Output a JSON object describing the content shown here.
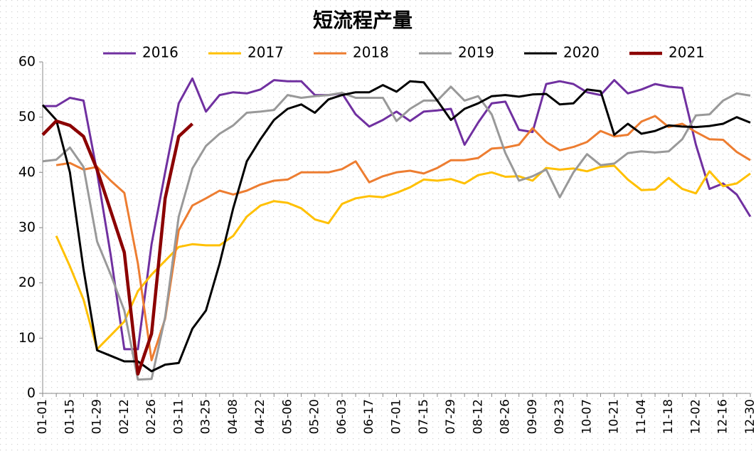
{
  "chart_data": {
    "type": "line",
    "title": "短流程产量",
    "categories": [
      "01-01",
      null,
      "01-15",
      null,
      "01-29",
      null,
      "02-12",
      null,
      "02-26",
      null,
      "03-11",
      null,
      "03-25",
      null,
      "04-08",
      null,
      "04-22",
      null,
      "05-06",
      null,
      "05-20",
      null,
      "06-03",
      null,
      "06-17",
      null,
      "07-01",
      null,
      "07-15",
      null,
      "07-29",
      null,
      "08-12",
      null,
      "08-26",
      null,
      "09-09",
      null,
      "09-23",
      null,
      "10-07",
      null,
      "10-21",
      null,
      "11-04",
      null,
      "11-18",
      null,
      "12-02",
      null,
      "12-16",
      null,
      "12-30"
    ],
    "series": [
      {
        "name": "2016",
        "color": "#7030a0",
        "values": [
          52,
          52,
          53.5,
          53,
          40,
          25,
          8,
          8,
          27,
          40,
          52.5,
          57,
          51,
          54,
          54.5,
          54.3,
          55,
          56.7,
          56.5,
          56.5,
          54,
          54,
          54.3,
          50.5,
          48.3,
          49.5,
          51,
          49.3,
          51,
          51.2,
          51.5,
          45,
          49,
          52.5,
          52.8,
          47.7,
          47.3,
          56,
          56.5,
          56,
          54.5,
          54,
          56.7,
          54.3,
          55,
          56,
          55.5,
          55.3,
          45,
          37,
          38,
          36,
          32
        ]
      },
      {
        "name": "2017",
        "color": "#ffc000",
        "values": [
          null,
          28.5,
          23,
          17,
          8,
          10.5,
          13,
          18.5,
          21.5,
          24,
          26.5,
          27,
          26.8,
          26.8,
          28.5,
          32,
          34,
          34.8,
          34.5,
          33.5,
          31.5,
          30.8,
          34.3,
          35.3,
          35.7,
          35.5,
          36.3,
          37.3,
          38.7,
          38.5,
          38.8,
          38,
          39.5,
          40,
          39.2,
          39.3,
          38.5,
          40.8,
          40.5,
          40.7,
          40.2,
          41,
          41.2,
          38.7,
          36.8,
          36.9,
          39,
          37,
          36.2,
          40.2,
          37.5,
          38,
          39.8
        ]
      },
      {
        "name": "2018",
        "color": "#ed7d31",
        "values": [
          null,
          41.3,
          41.7,
          40.5,
          41,
          38.5,
          36.3,
          23.5,
          6,
          13.5,
          29.5,
          34,
          35.3,
          36.7,
          36,
          36.7,
          37.8,
          38.5,
          38.7,
          40,
          40,
          40,
          40.6,
          42,
          38.2,
          39.3,
          40,
          40.3,
          39.8,
          40.8,
          42.2,
          42.2,
          42.6,
          44.3,
          44.5,
          45,
          48,
          45.5,
          44,
          44.6,
          45.5,
          47.5,
          46.5,
          46.8,
          49.2,
          50.2,
          48.2,
          48.8,
          47.3,
          46,
          45.9,
          43.7,
          42.2
        ]
      },
      {
        "name": "2019",
        "color": "#999999",
        "values": [
          42,
          42.3,
          44.5,
          41,
          27.5,
          21.5,
          15,
          2.5,
          2.6,
          13.8,
          32,
          40.7,
          44.8,
          47,
          48.5,
          50.8,
          51,
          51.3,
          54,
          53.5,
          53.8,
          54,
          54.4,
          53.5,
          53.5,
          53.5,
          49.3,
          51.5,
          53,
          53,
          55.5,
          53,
          53.8,
          50.5,
          43.5,
          38.5,
          39.3,
          40.5,
          35.5,
          40,
          43.3,
          41.3,
          41.6,
          43.5,
          43.8,
          43.6,
          43.8,
          46,
          50.3,
          50.5,
          53,
          54.3,
          53.9
        ]
      },
      {
        "name": "2020",
        "color": "#000000",
        "values": [
          52.2,
          49.5,
          40,
          22.5,
          7.8,
          6.8,
          5.8,
          5.8,
          4,
          5.2,
          5.5,
          11.7,
          15,
          23.5,
          33.5,
          42,
          46,
          49.5,
          51.5,
          52.3,
          50.8,
          53.2,
          54,
          54.5,
          54.5,
          55.8,
          54.6,
          56.5,
          56.3,
          53,
          49.5,
          51.5,
          52.5,
          53.8,
          54,
          53.7,
          54.1,
          54.2,
          52.3,
          52.5,
          55,
          54.7,
          46.8,
          48.8,
          47,
          47.5,
          48.5,
          48.3,
          48.2,
          48.4,
          48.8,
          50,
          49
        ]
      },
      {
        "name": "2021",
        "color": "#8b0000",
        "values": [
          46.8,
          49.3,
          48.5,
          46.5,
          40.5,
          33,
          25.5,
          3.5,
          10.8,
          35.3,
          46.5,
          48.8,
          null,
          null,
          null,
          null,
          null,
          null,
          null,
          null,
          null,
          null,
          null,
          null,
          null,
          null,
          null,
          null,
          null,
          null,
          null,
          null,
          null,
          null,
          null,
          null,
          null,
          null,
          null,
          null,
          null,
          null,
          null,
          null,
          null,
          null,
          null,
          null,
          null,
          null,
          null,
          null,
          null
        ]
      }
    ],
    "ylim": [
      0,
      60
    ],
    "yticks": [
      0,
      10,
      20,
      30,
      40,
      50,
      60
    ],
    "legend": "top"
  }
}
